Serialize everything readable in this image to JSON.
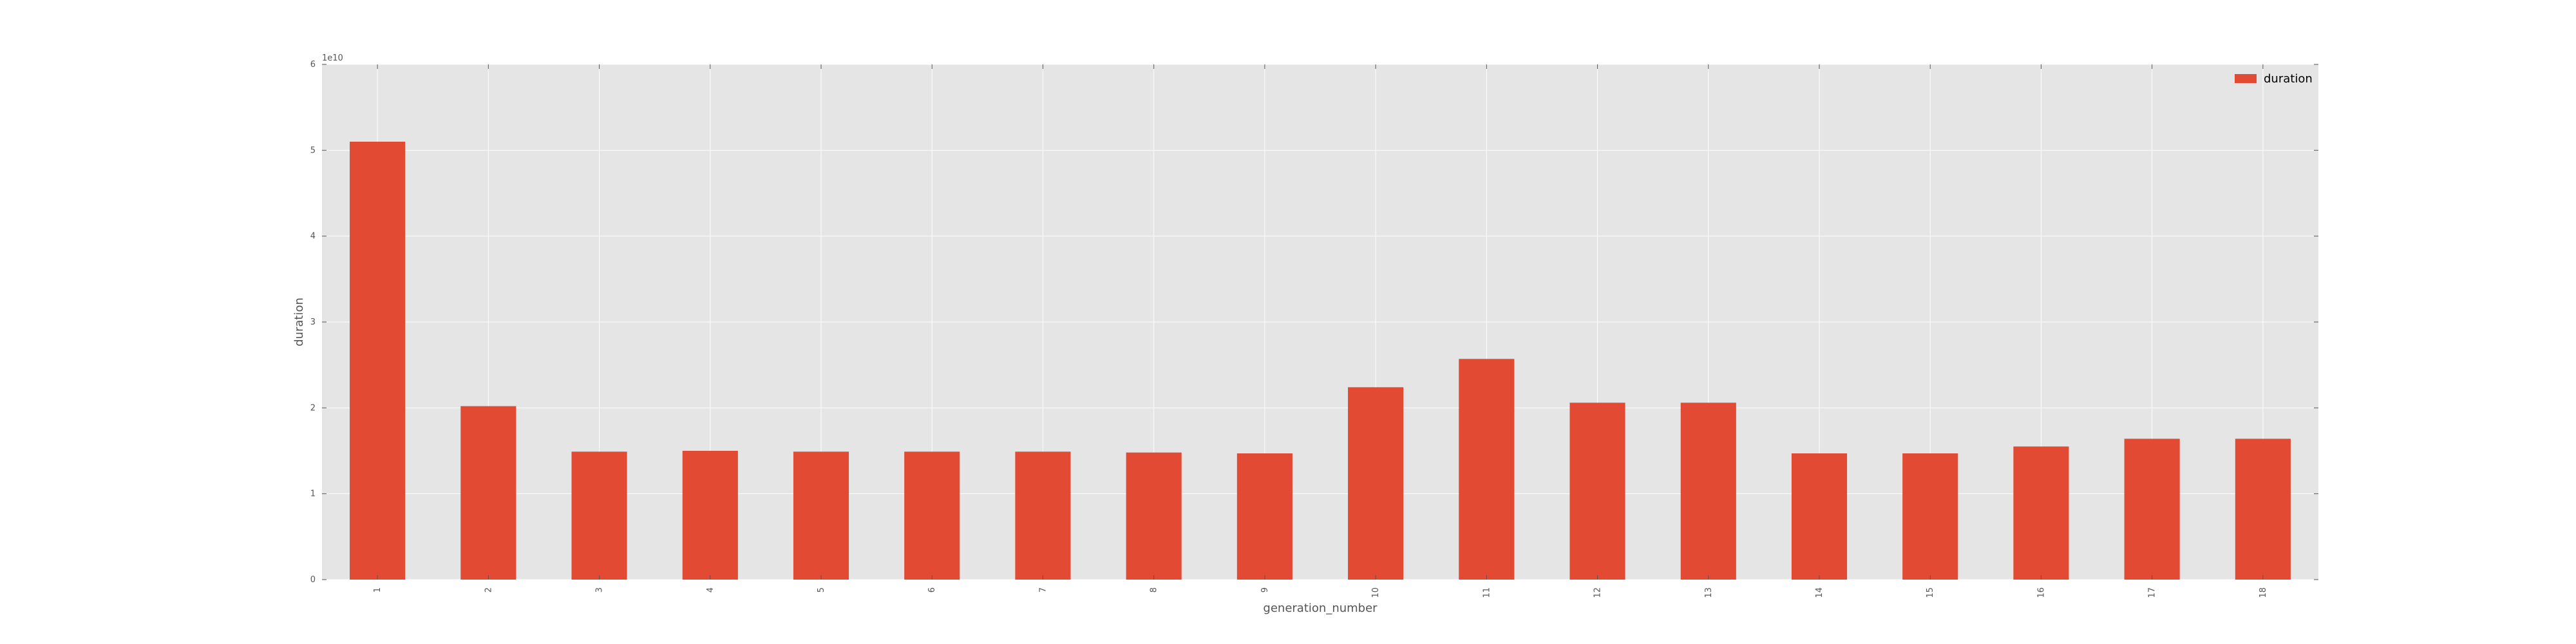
{
  "chart_data": {
    "type": "bar",
    "categories": [
      "1",
      "2",
      "3",
      "4",
      "5",
      "6",
      "7",
      "8",
      "9",
      "10",
      "11",
      "12",
      "13",
      "14",
      "15",
      "16",
      "17",
      "18"
    ],
    "series": [
      {
        "name": "duration",
        "values": [
          51000000000.0,
          20200000000.0,
          14900000000.0,
          15000000000.0,
          14900000000.0,
          14900000000.0,
          14900000000.0,
          14800000000.0,
          14700000000.0,
          22400000000.0,
          25700000000.0,
          20600000000.0,
          20600000000.0,
          14700000000.0,
          14700000000.0,
          15500000000.0,
          16400000000.0,
          16400000000.0
        ],
        "color": "#E24A33"
      }
    ],
    "title": "",
    "xlabel": "generation_number",
    "ylabel": "duration",
    "ylim": [
      0,
      60000000000.0
    ],
    "yticks": [
      0,
      10000000000.0,
      20000000000.0,
      30000000000.0,
      40000000000.0,
      50000000000.0,
      60000000000.0
    ],
    "ytick_labels": [
      "0",
      "1",
      "2",
      "3",
      "4",
      "5",
      "6"
    ],
    "y_offset_label": "1e10",
    "grid": true,
    "legend_position": "top-right",
    "background_color": "#E5E5E5",
    "grid_color": "#FFFFFF"
  }
}
